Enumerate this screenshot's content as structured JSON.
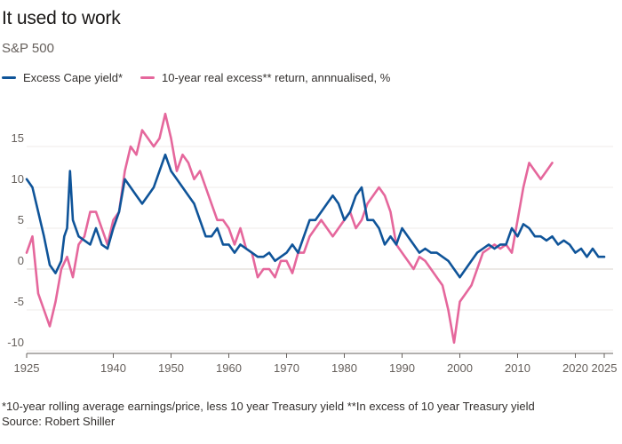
{
  "header": {
    "title": "It used to work",
    "subtitle": "S&P 500"
  },
  "legend": {
    "items": [
      {
        "label": "Excess Cape yield*",
        "color": "#0f5499"
      },
      {
        "label": "10-year real excess** return, annnualised, %",
        "color": "#e5679c"
      }
    ]
  },
  "footnote": {
    "note": "*10-year rolling average earnings/price, less 10 year Treasury yield **In excess of 10 year Treasury yield",
    "source": "Source: Robert Shiller"
  },
  "chart_data": {
    "type": "line",
    "title": "It used to work",
    "subtitle": "S&P 500",
    "xlabel": "",
    "ylabel": "",
    "xlim": [
      1925,
      2025
    ],
    "ylim": [
      -10,
      15
    ],
    "y_ticks": [
      15,
      10,
      5,
      0,
      -5,
      -10
    ],
    "x_ticks": [
      1925,
      1940,
      1950,
      1960,
      1970,
      1980,
      1990,
      2000,
      2010,
      2020,
      2025
    ],
    "grid": "horizontal",
    "series": [
      {
        "name": "Excess Cape yield*",
        "color": "#0f5499",
        "x": [
          1925,
          1926,
          1927,
          1928,
          1929,
          1930,
          1931,
          1931.5,
          1932,
          1932.5,
          1933,
          1934,
          1935,
          1936,
          1937,
          1938,
          1939,
          1940,
          1941,
          1942,
          1943,
          1944,
          1945,
          1946,
          1947,
          1948,
          1949,
          1950,
          1951,
          1952,
          1953,
          1954,
          1955,
          1956,
          1957,
          1958,
          1959,
          1960,
          1961,
          1962,
          1963,
          1964,
          1965,
          1966,
          1967,
          1968,
          1969,
          1970,
          1971,
          1972,
          1973,
          1974,
          1975,
          1976,
          1977,
          1978,
          1979,
          1980,
          1981,
          1982,
          1983,
          1984,
          1985,
          1986,
          1987,
          1988,
          1989,
          1990,
          1991,
          1992,
          1993,
          1994,
          1995,
          1996,
          1997,
          1998,
          1999,
          2000,
          2001,
          2002,
          2003,
          2004,
          2005,
          2006,
          2007,
          2008,
          2009,
          2010,
          2011,
          2012,
          2013,
          2014,
          2015,
          2016,
          2017,
          2018,
          2019,
          2020,
          2021,
          2022,
          2023,
          2024,
          2025
        ],
        "values": [
          11,
          10,
          7,
          4,
          0.5,
          -0.5,
          1,
          4,
          5,
          12,
          6,
          4,
          3.5,
          3,
          5,
          3,
          2.5,
          5,
          7,
          11,
          10,
          9,
          8,
          9,
          10,
          12,
          14,
          12,
          11,
          10,
          9,
          8,
          6,
          4,
          4,
          5,
          3,
          3,
          2,
          3,
          2.5,
          2,
          1.5,
          1.5,
          2,
          1,
          1.5,
          2,
          3,
          2,
          4,
          6,
          6,
          7,
          8,
          9,
          8,
          6,
          7,
          9,
          10,
          6,
          6,
          5,
          3,
          4,
          3,
          5,
          4,
          3,
          2,
          2.5,
          2,
          2,
          1.5,
          1,
          0,
          -1,
          0,
          1,
          2,
          2.5,
          3,
          2.5,
          3,
          3,
          5,
          4,
          5.5,
          5,
          4,
          4,
          3.5,
          4,
          3,
          3.5,
          3,
          2,
          2.5,
          1.5,
          2.5,
          1.5,
          1.5
        ]
      },
      {
        "name": "10-year real excess** return, annnualised, %",
        "color": "#e5679c",
        "x": [
          1925,
          1926,
          1927,
          1928,
          1929,
          1930,
          1931,
          1932,
          1933,
          1934,
          1935,
          1936,
          1937,
          1938,
          1939,
          1940,
          1941,
          1942,
          1943,
          1944,
          1945,
          1946,
          1947,
          1948,
          1949,
          1950,
          1951,
          1952,
          1953,
          1954,
          1955,
          1956,
          1957,
          1958,
          1959,
          1960,
          1961,
          1962,
          1963,
          1964,
          1965,
          1966,
          1967,
          1968,
          1969,
          1970,
          1971,
          1972,
          1973,
          1974,
          1975,
          1976,
          1977,
          1978,
          1979,
          1980,
          1981,
          1982,
          1983,
          1984,
          1985,
          1986,
          1987,
          1988,
          1989,
          1990,
          1991,
          1992,
          1993,
          1994,
          1995,
          1996,
          1997,
          1998,
          1999,
          2000,
          2001,
          2002,
          2003,
          2004,
          2005,
          2006,
          2007,
          2008,
          2009,
          2010,
          2011,
          2012,
          2013,
          2014,
          2015,
          2016
        ],
        "values": [
          2,
          4,
          -3,
          -5,
          -7,
          -4,
          0,
          1.5,
          -1,
          3,
          4,
          7,
          7,
          5,
          3,
          6,
          7,
          12,
          15,
          14,
          17,
          16,
          15,
          16,
          19,
          16,
          12,
          14,
          13,
          11,
          12,
          10,
          8,
          6,
          6,
          5,
          3,
          5,
          2.5,
          2,
          -1,
          0,
          0,
          -1,
          1,
          1,
          -0.5,
          2,
          2,
          4,
          5,
          6,
          5,
          4,
          5,
          6,
          7,
          5,
          6,
          8,
          9,
          10,
          9,
          7,
          3,
          2,
          1,
          0,
          1.5,
          1,
          0,
          -1,
          -2,
          -5,
          -9,
          -4,
          -3,
          -2,
          0,
          2,
          2.5,
          3,
          2.5,
          3,
          2,
          6,
          10,
          13,
          12,
          11,
          12,
          13
        ]
      }
    ]
  }
}
